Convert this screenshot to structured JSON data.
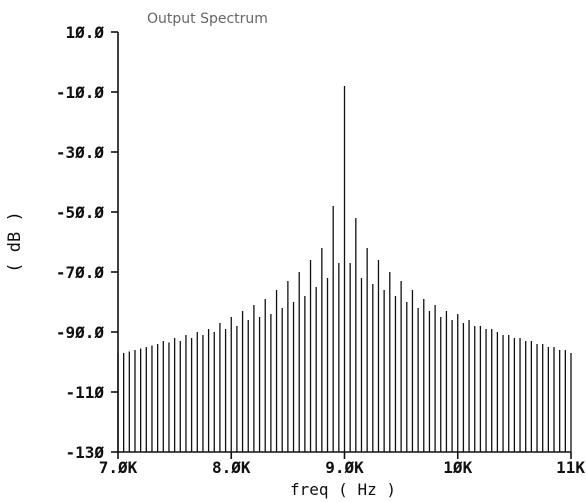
{
  "chart_data": {
    "type": "bar",
    "title": "Output Spectrum",
    "xlabel": "freq ( Hz )",
    "ylabel": "( dB )",
    "xlim": [
      7000,
      11000
    ],
    "ylim": [
      -130,
      10
    ],
    "x_ticks": [
      {
        "value": 7000,
        "label": "7.ØK"
      },
      {
        "value": 8000,
        "label": "8.ØK"
      },
      {
        "value": 9000,
        "label": "9.ØK"
      },
      {
        "value": 10000,
        "label": "1ØK"
      },
      {
        "value": 11000,
        "label": "11K"
      }
    ],
    "y_ticks": [
      {
        "value": 10,
        "label": "1Ø.Ø"
      },
      {
        "value": -10,
        "label": "-1Ø.Ø"
      },
      {
        "value": -30,
        "label": "-3Ø.Ø"
      },
      {
        "value": -50,
        "label": "-5Ø.Ø"
      },
      {
        "value": -70,
        "label": "-7Ø.Ø"
      },
      {
        "value": -90,
        "label": "-9Ø.Ø"
      },
      {
        "value": -110,
        "label": "-11Ø"
      },
      {
        "value": -130,
        "label": "-13Ø"
      }
    ],
    "grid": false,
    "legend": "none",
    "line_color": "#111111",
    "x": [
      7000,
      7050,
      7100,
      7150,
      7200,
      7250,
      7300,
      7350,
      7400,
      7450,
      7500,
      7550,
      7600,
      7650,
      7700,
      7750,
      7800,
      7850,
      7900,
      7950,
      8000,
      8050,
      8100,
      8150,
      8200,
      8250,
      8300,
      8350,
      8400,
      8450,
      8500,
      8550,
      8600,
      8650,
      8700,
      8750,
      8800,
      8850,
      8900,
      8950,
      9000,
      9050,
      9100,
      9150,
      9200,
      9250,
      9300,
      9350,
      9400,
      9450,
      9500,
      9550,
      9600,
      9650,
      9700,
      9750,
      9800,
      9850,
      9900,
      9950,
      10000,
      10050,
      10100,
      10150,
      10200,
      10250,
      10300,
      10350,
      10400,
      10450,
      10500,
      10550,
      10600,
      10650,
      10700,
      10750,
      10800,
      10850,
      10900,
      10950,
      11000
    ],
    "values": [
      -97,
      -97,
      -96.5,
      -96,
      -95.5,
      -95,
      -94.5,
      -94,
      -93,
      -93.5,
      -92,
      -93,
      -91,
      -92,
      -90,
      -91,
      -89,
      -90,
      -87,
      -89,
      -85,
      -88,
      -83,
      -86,
      -81,
      -85,
      -79,
      -84,
      -76,
      -82,
      -73,
      -80,
      -70,
      -78,
      -66,
      -75,
      -62,
      -72,
      -48,
      -67,
      -8,
      -67,
      -52,
      -72,
      -62,
      -74,
      -66,
      -76,
      -70,
      -78,
      -73,
      -80,
      -76,
      -82,
      -79,
      -83,
      -81,
      -85,
      -83,
      -86,
      -84,
      -87,
      -86,
      -88,
      -88,
      -89,
      -89,
      -90,
      -91,
      -91,
      -92,
      -92,
      -93,
      -93,
      -94,
      -94,
      -95,
      -95,
      -96,
      -96,
      -97
    ]
  }
}
